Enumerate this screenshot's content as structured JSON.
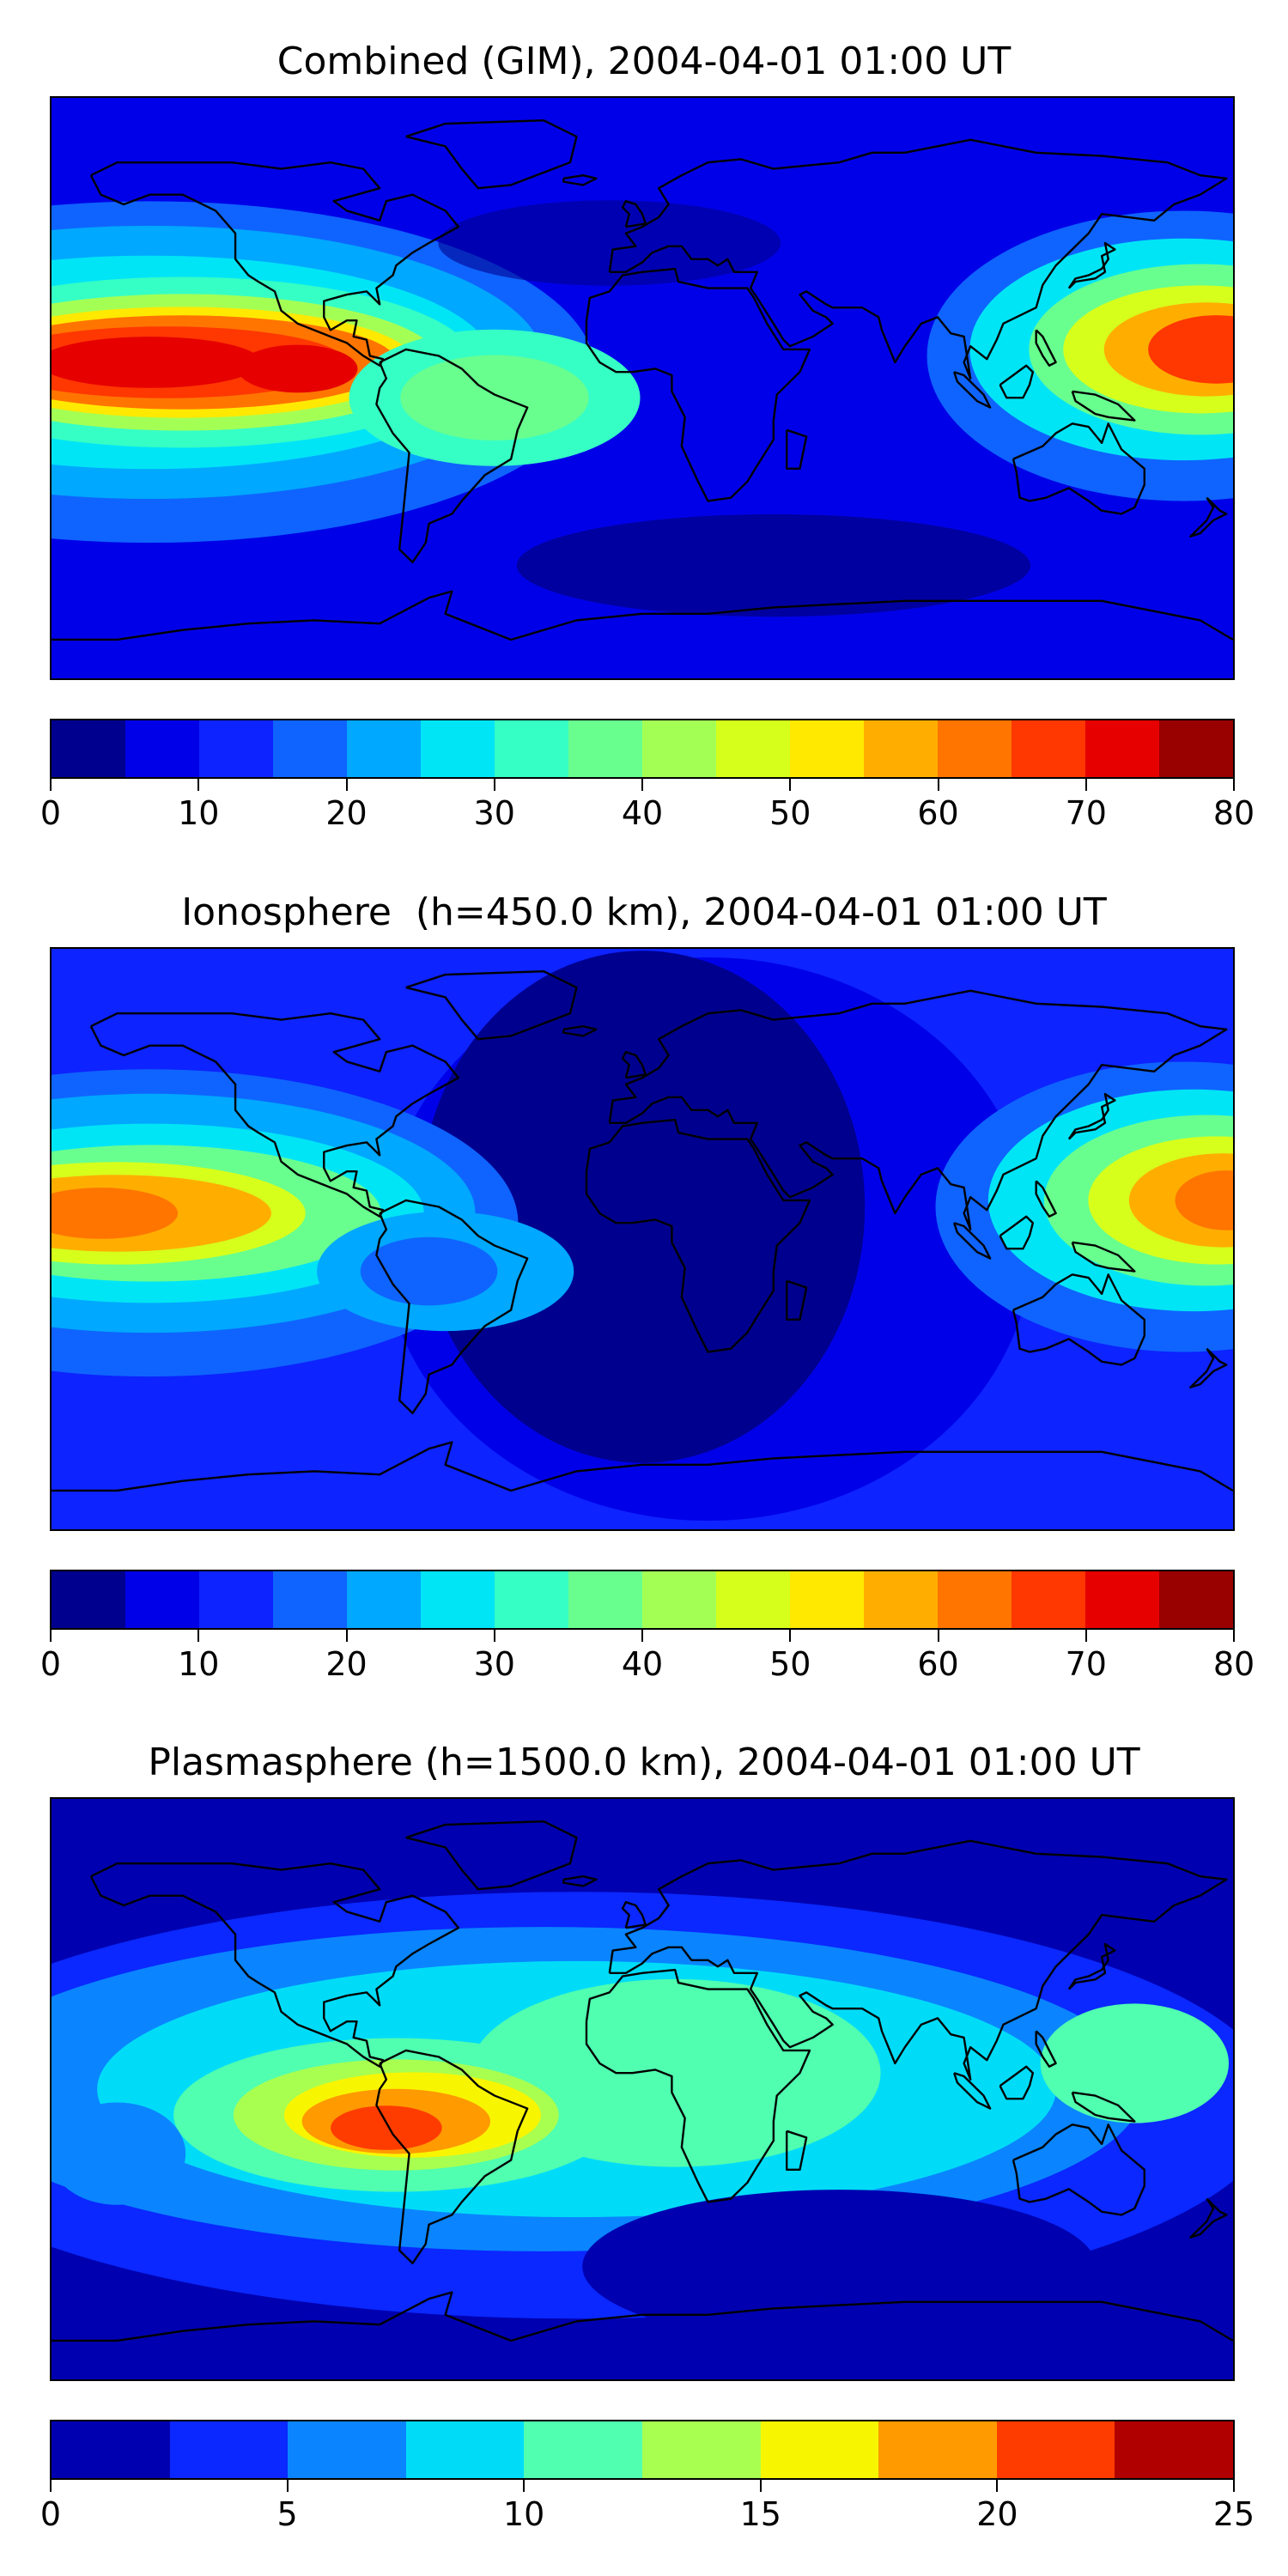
{
  "chart_data": [
    {
      "type": "heatmap",
      "title": "Combined (GIM), 2004-04-01 01:00 UT",
      "colorbar": {
        "vmin": 0,
        "vmax": 80,
        "step": 5,
        "ticks": [
          "0",
          "10",
          "20",
          "30",
          "40",
          "50",
          "60",
          "70",
          "80"
        ],
        "colors": [
          "#00008f",
          "#0000e8",
          "#0d23ff",
          "#0f64ff",
          "#00a8ff",
          "#00e5f6",
          "#36ffc5",
          "#68ff8f",
          "#a4ff55",
          "#d6ff1c",
          "#ffe900",
          "#ffae00",
          "#ff7500",
          "#ff3700",
          "#e60000",
          "#990000"
        ]
      },
      "features": [
        {
          "lon": -150,
          "lat": 8,
          "value": 75
        },
        {
          "lon": -105,
          "lat": 6,
          "value": 72
        },
        {
          "lon": 165,
          "lat": 12,
          "value": 68
        },
        {
          "lon": -45,
          "lat": -5,
          "value": 38
        },
        {
          "lon": 30,
          "lat": -50,
          "value": 8
        }
      ]
    },
    {
      "type": "heatmap",
      "title": "Ionosphere  (h=450.0 km), 2004-04-01 01:00 UT",
      "colorbar": {
        "vmin": 0,
        "vmax": 80,
        "step": 5,
        "ticks": [
          "0",
          "10",
          "20",
          "30",
          "40",
          "50",
          "60",
          "70",
          "80"
        ],
        "colors": [
          "#00008f",
          "#0000e8",
          "#0d23ff",
          "#0f64ff",
          "#00a8ff",
          "#00e5f6",
          "#36ffc5",
          "#68ff8f",
          "#a4ff55",
          "#d6ff1c",
          "#ffe900",
          "#ffae00",
          "#ff7500",
          "#ff3700",
          "#e60000",
          "#990000"
        ]
      },
      "features": [
        {
          "lon": -150,
          "lat": 8,
          "value": 62
        },
        {
          "lon": 170,
          "lat": 12,
          "value": 62
        },
        {
          "lon": 10,
          "lat": 0,
          "value": 4
        },
        {
          "lon": -60,
          "lat": -10,
          "value": 28
        }
      ]
    },
    {
      "type": "heatmap",
      "title": "Plasmasphere (h=1500.0 km), 2004-04-01 01:00 UT",
      "colorbar": {
        "vmin": 0,
        "vmax": 25,
        "step": 2.5,
        "ticks": [
          "0",
          "5",
          "10",
          "15",
          "20",
          "25"
        ],
        "colors": [
          "#0000b0",
          "#0a28ff",
          "#0a85ff",
          "#00dcf8",
          "#50ffb0",
          "#a8ff50",
          "#f8f500",
          "#ff9a00",
          "#ff3c00",
          "#b00000"
        ]
      },
      "features": [
        {
          "lon": -75,
          "lat": -10,
          "value": 21
        },
        {
          "lon": 20,
          "lat": 10,
          "value": 11
        },
        {
          "lon": 150,
          "lat": 8,
          "value": 11
        },
        {
          "lon": 60,
          "lat": -55,
          "value": 1
        }
      ]
    }
  ]
}
